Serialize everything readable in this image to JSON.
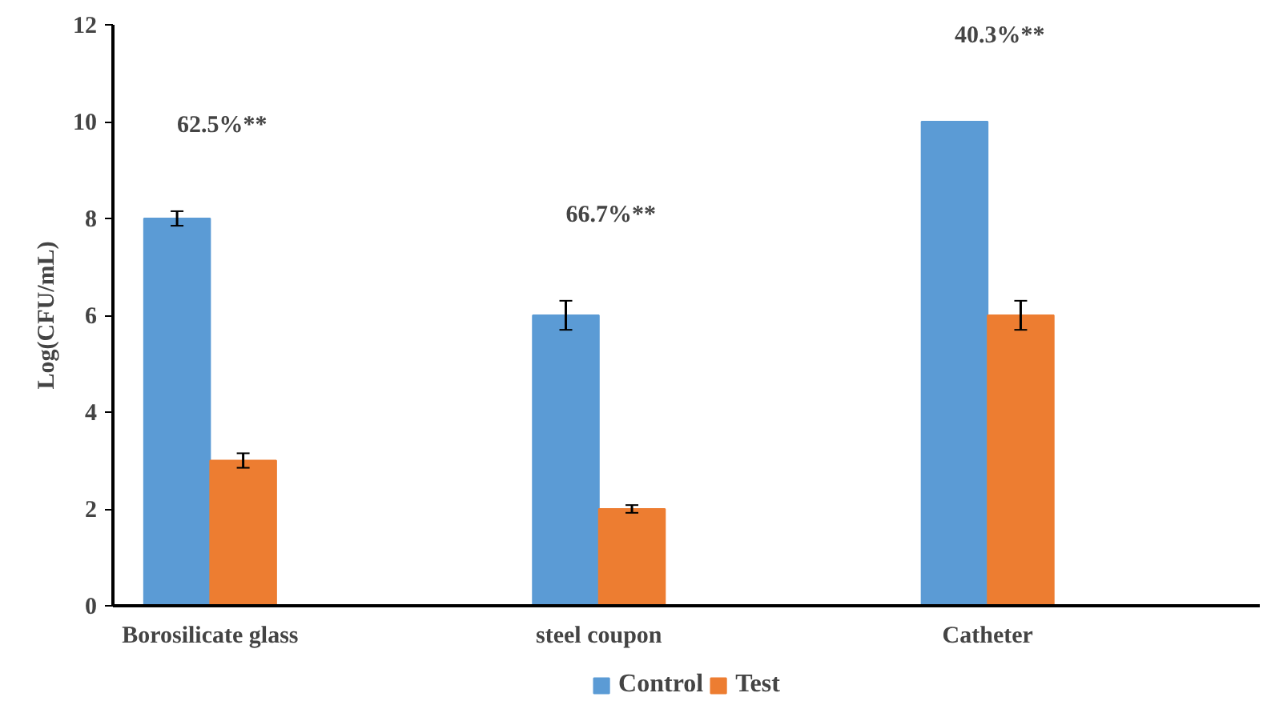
{
  "chart_data": {
    "type": "bar",
    "ylabel": "Log(CFU/mL)",
    "categories": [
      "Borosilicate glass",
      "steel coupon",
      "Catheter"
    ],
    "series": [
      {
        "name": "Control",
        "color": "#5b9bd5",
        "values": [
          8,
          6,
          10
        ],
        "errors": [
          0.15,
          0.3,
          null
        ]
      },
      {
        "name": "Test",
        "color": "#ed7d31",
        "values": [
          3,
          2,
          6
        ],
        "errors": [
          0.15,
          0.08,
          0.3
        ]
      }
    ],
    "annotations": [
      "62.5%**",
      "66.7%**",
      "40.3%**"
    ],
    "ylim": [
      0,
      12
    ],
    "yticks": [
      0,
      2,
      4,
      6,
      8,
      10,
      12
    ],
    "grid": false,
    "legend": "bottom"
  }
}
